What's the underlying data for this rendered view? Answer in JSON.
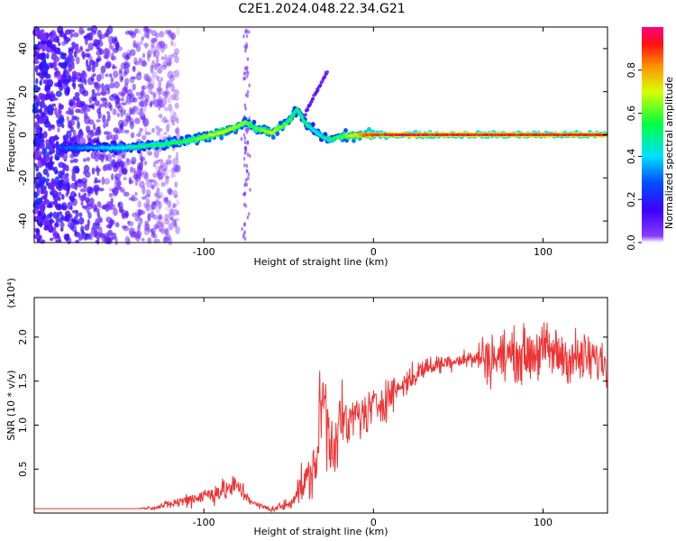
{
  "title": "C2E1.2024.048.22.34.G21",
  "chart_data": [
    {
      "type": "heatmap",
      "xlabel": "Height of straight line (km)",
      "ylabel": "Frequency (Hz)",
      "xlim": [
        -200,
        138
      ],
      "ylim": [
        -50,
        50
      ],
      "x_ticks": [
        -100,
        0,
        100
      ],
      "y_ticks": [
        -40,
        -20,
        0,
        20,
        40
      ],
      "colorbar": {
        "label": "Normalized spectral amplitude",
        "range": [
          0,
          1
        ],
        "ticks": [
          "0.0",
          "0.2",
          "0.4",
          "0.6",
          "0.8"
        ],
        "colormap": "rainbow (purple-blue-cyan-green-yellow-orange-red-magenta)"
      },
      "ridge": {
        "description": "frequency of peak spectral amplitude vs height",
        "x": [
          -180,
          -150,
          -130,
          -110,
          -90,
          -80,
          -75,
          -70,
          -60,
          -50,
          -45,
          -40,
          -35,
          -30,
          -25,
          -20,
          -10,
          0,
          20,
          60,
          100,
          138
        ],
        "y": [
          -6,
          -6,
          -5,
          -3,
          1,
          4,
          6,
          3,
          1,
          6,
          12,
          5,
          2,
          -1,
          -2,
          -1,
          0,
          0,
          0,
          0,
          0,
          0
        ],
        "amplitude": [
          0.3,
          0.45,
          0.55,
          0.6,
          0.75,
          0.7,
          0.65,
          0.6,
          0.75,
          0.6,
          0.5,
          0.55,
          0.45,
          0.5,
          0.55,
          0.6,
          0.8,
          0.95,
          0.98,
          0.97,
          0.97,
          0.97
        ]
      },
      "branch": {
        "x": [
          -40,
          -35,
          -30,
          -27
        ],
        "y": [
          10,
          18,
          25,
          30
        ]
      },
      "noise_region_x": [
        -200,
        -130
      ],
      "vertical_streak_x": -75
    },
    {
      "type": "line",
      "xlabel": "Height of straight line (km)",
      "ylabel": "SNR (10 * v/v)",
      "y_multiplier": "(x10⁴)",
      "xlim": [
        -200,
        138
      ],
      "ylim": [
        0,
        24500
      ],
      "x_ticks": [
        -100,
        0,
        100
      ],
      "y_ticks": [
        {
          "value": 5000,
          "label": "0.5"
        },
        {
          "value": 10000,
          "label": "1.0"
        },
        {
          "value": 15000,
          "label": "1.5"
        },
        {
          "value": 20000,
          "label": "2.0"
        }
      ],
      "color": "#ee3333",
      "x": [
        -200,
        -180,
        -160,
        -140,
        -130,
        -120,
        -110,
        -100,
        -90,
        -80,
        -75,
        -70,
        -60,
        -50,
        -45,
        -40,
        -35,
        -32,
        -30,
        -28,
        -25,
        -22,
        -20,
        -15,
        -10,
        -5,
        0,
        10,
        20,
        30,
        40,
        50,
        60,
        65,
        70,
        80,
        90,
        100,
        110,
        120,
        130,
        138
      ],
      "y": [
        500,
        500,
        500,
        500,
        600,
        1000,
        1500,
        2000,
        2500,
        3000,
        2000,
        1000,
        400,
        1000,
        2500,
        3500,
        5000,
        9000,
        14000,
        11000,
        8000,
        9000,
        11000,
        9500,
        11500,
        11000,
        12000,
        13500,
        15000,
        16500,
        17000,
        17500,
        17500,
        18000,
        17500,
        18000,
        18000,
        18500,
        18000,
        17500,
        17500,
        17000
      ],
      "noise_amplitude": [
        0,
        0,
        0,
        0,
        200,
        500,
        800,
        1000,
        1200,
        1400,
        800,
        400,
        300,
        800,
        1500,
        2000,
        3500,
        5000,
        6000,
        5500,
        4500,
        4000,
        3000,
        3000,
        2500,
        2500,
        2500,
        2000,
        1500,
        1200,
        1000,
        1000,
        1000,
        2500,
        3000,
        2500,
        3000,
        3000,
        3000,
        3000,
        2500,
        2500
      ]
    }
  ]
}
